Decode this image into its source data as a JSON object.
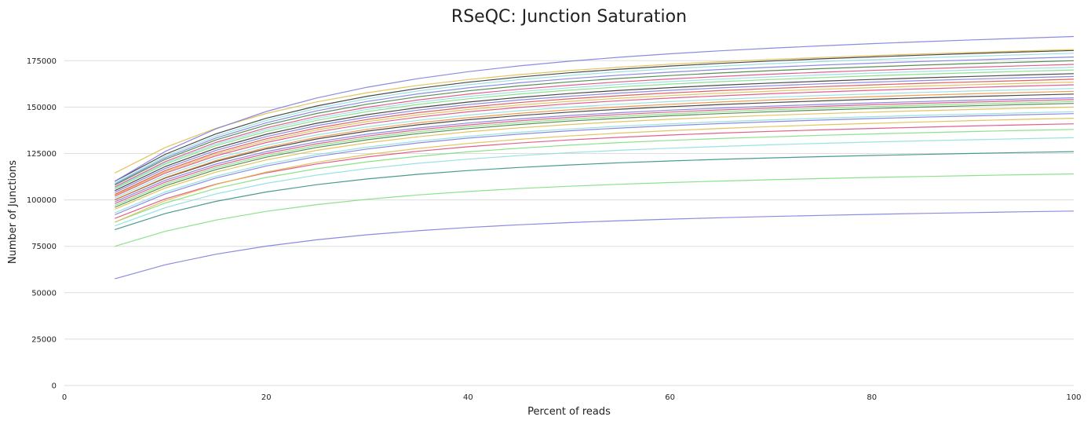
{
  "chart_data": {
    "type": "line",
    "title": "RSeQC: Junction Saturation",
    "xlabel": "Percent of reads",
    "ylabel": "Number of Junctions",
    "xlim": [
      0,
      100
    ],
    "ylim": [
      0,
      195000
    ],
    "xticks": [
      0,
      20,
      40,
      60,
      80,
      100
    ],
    "yticks": [
      0,
      25000,
      50000,
      75000,
      100000,
      125000,
      150000,
      175000
    ],
    "x": [
      5,
      10,
      15,
      20,
      25,
      30,
      35,
      40,
      45,
      50,
      55,
      60,
      65,
      70,
      75,
      80,
      85,
      90,
      95,
      100
    ],
    "grid": "horizontal",
    "legend": "none",
    "series": [
      {
        "color": "#7777dd",
        "start": 57500,
        "end": 94000
      },
      {
        "color": "#77dd77",
        "start": 75000,
        "end": 114000
      },
      {
        "color": "#2a8a7a",
        "start": 84000,
        "end": 126000
      },
      {
        "color": "#88dddd",
        "start": 86000,
        "end": 133500
      },
      {
        "color": "#77dd77",
        "start": 88000,
        "end": 138000
      },
      {
        "color": "#dd4477",
        "start": 90000,
        "end": 141000
      },
      {
        "color": "#ddbb44",
        "start": 88000,
        "end": 144000
      },
      {
        "color": "#7777dd",
        "start": 92000,
        "end": 146500
      },
      {
        "color": "#88dddd",
        "start": 93000,
        "end": 147500
      },
      {
        "color": "#ddbb44",
        "start": 95000,
        "end": 150000
      },
      {
        "color": "#3a7a3a",
        "start": 96000,
        "end": 152000
      },
      {
        "color": "#77dd77",
        "start": 97000,
        "end": 153000
      },
      {
        "color": "#dd4477",
        "start": 98000,
        "end": 154000
      },
      {
        "color": "#7777dd",
        "start": 99000,
        "end": 155000
      },
      {
        "color": "#2a2a2a",
        "start": 100000,
        "end": 157000
      },
      {
        "color": "#ee8833",
        "start": 100000,
        "end": 158500
      },
      {
        "color": "#88dddd",
        "start": 101000,
        "end": 160000
      },
      {
        "color": "#dd4477",
        "start": 102000,
        "end": 162000
      },
      {
        "color": "#ddbb44",
        "start": 102500,
        "end": 163500
      },
      {
        "color": "#dd4444",
        "start": 103000,
        "end": 165000
      },
      {
        "color": "#7777dd",
        "start": 104000,
        "end": 166500
      },
      {
        "color": "#2a2a2a",
        "start": 105000,
        "end": 168000
      },
      {
        "color": "#77dd77",
        "start": 106000,
        "end": 170000
      },
      {
        "color": "#88dddd",
        "start": 106500,
        "end": 171500
      },
      {
        "color": "#dd4477",
        "start": 107000,
        "end": 173000
      },
      {
        "color": "#3a7a3a",
        "start": 108000,
        "end": 175000
      },
      {
        "color": "#7777dd",
        "start": 108500,
        "end": 177000
      },
      {
        "color": "#88dddd",
        "start": 109000,
        "end": 179000
      },
      {
        "color": "#2a2a2a",
        "start": 110000,
        "end": 180500
      },
      {
        "color": "#ddbb44",
        "start": 114500,
        "end": 181000
      },
      {
        "color": "#7777dd",
        "start": 110000,
        "end": 188000
      }
    ]
  }
}
